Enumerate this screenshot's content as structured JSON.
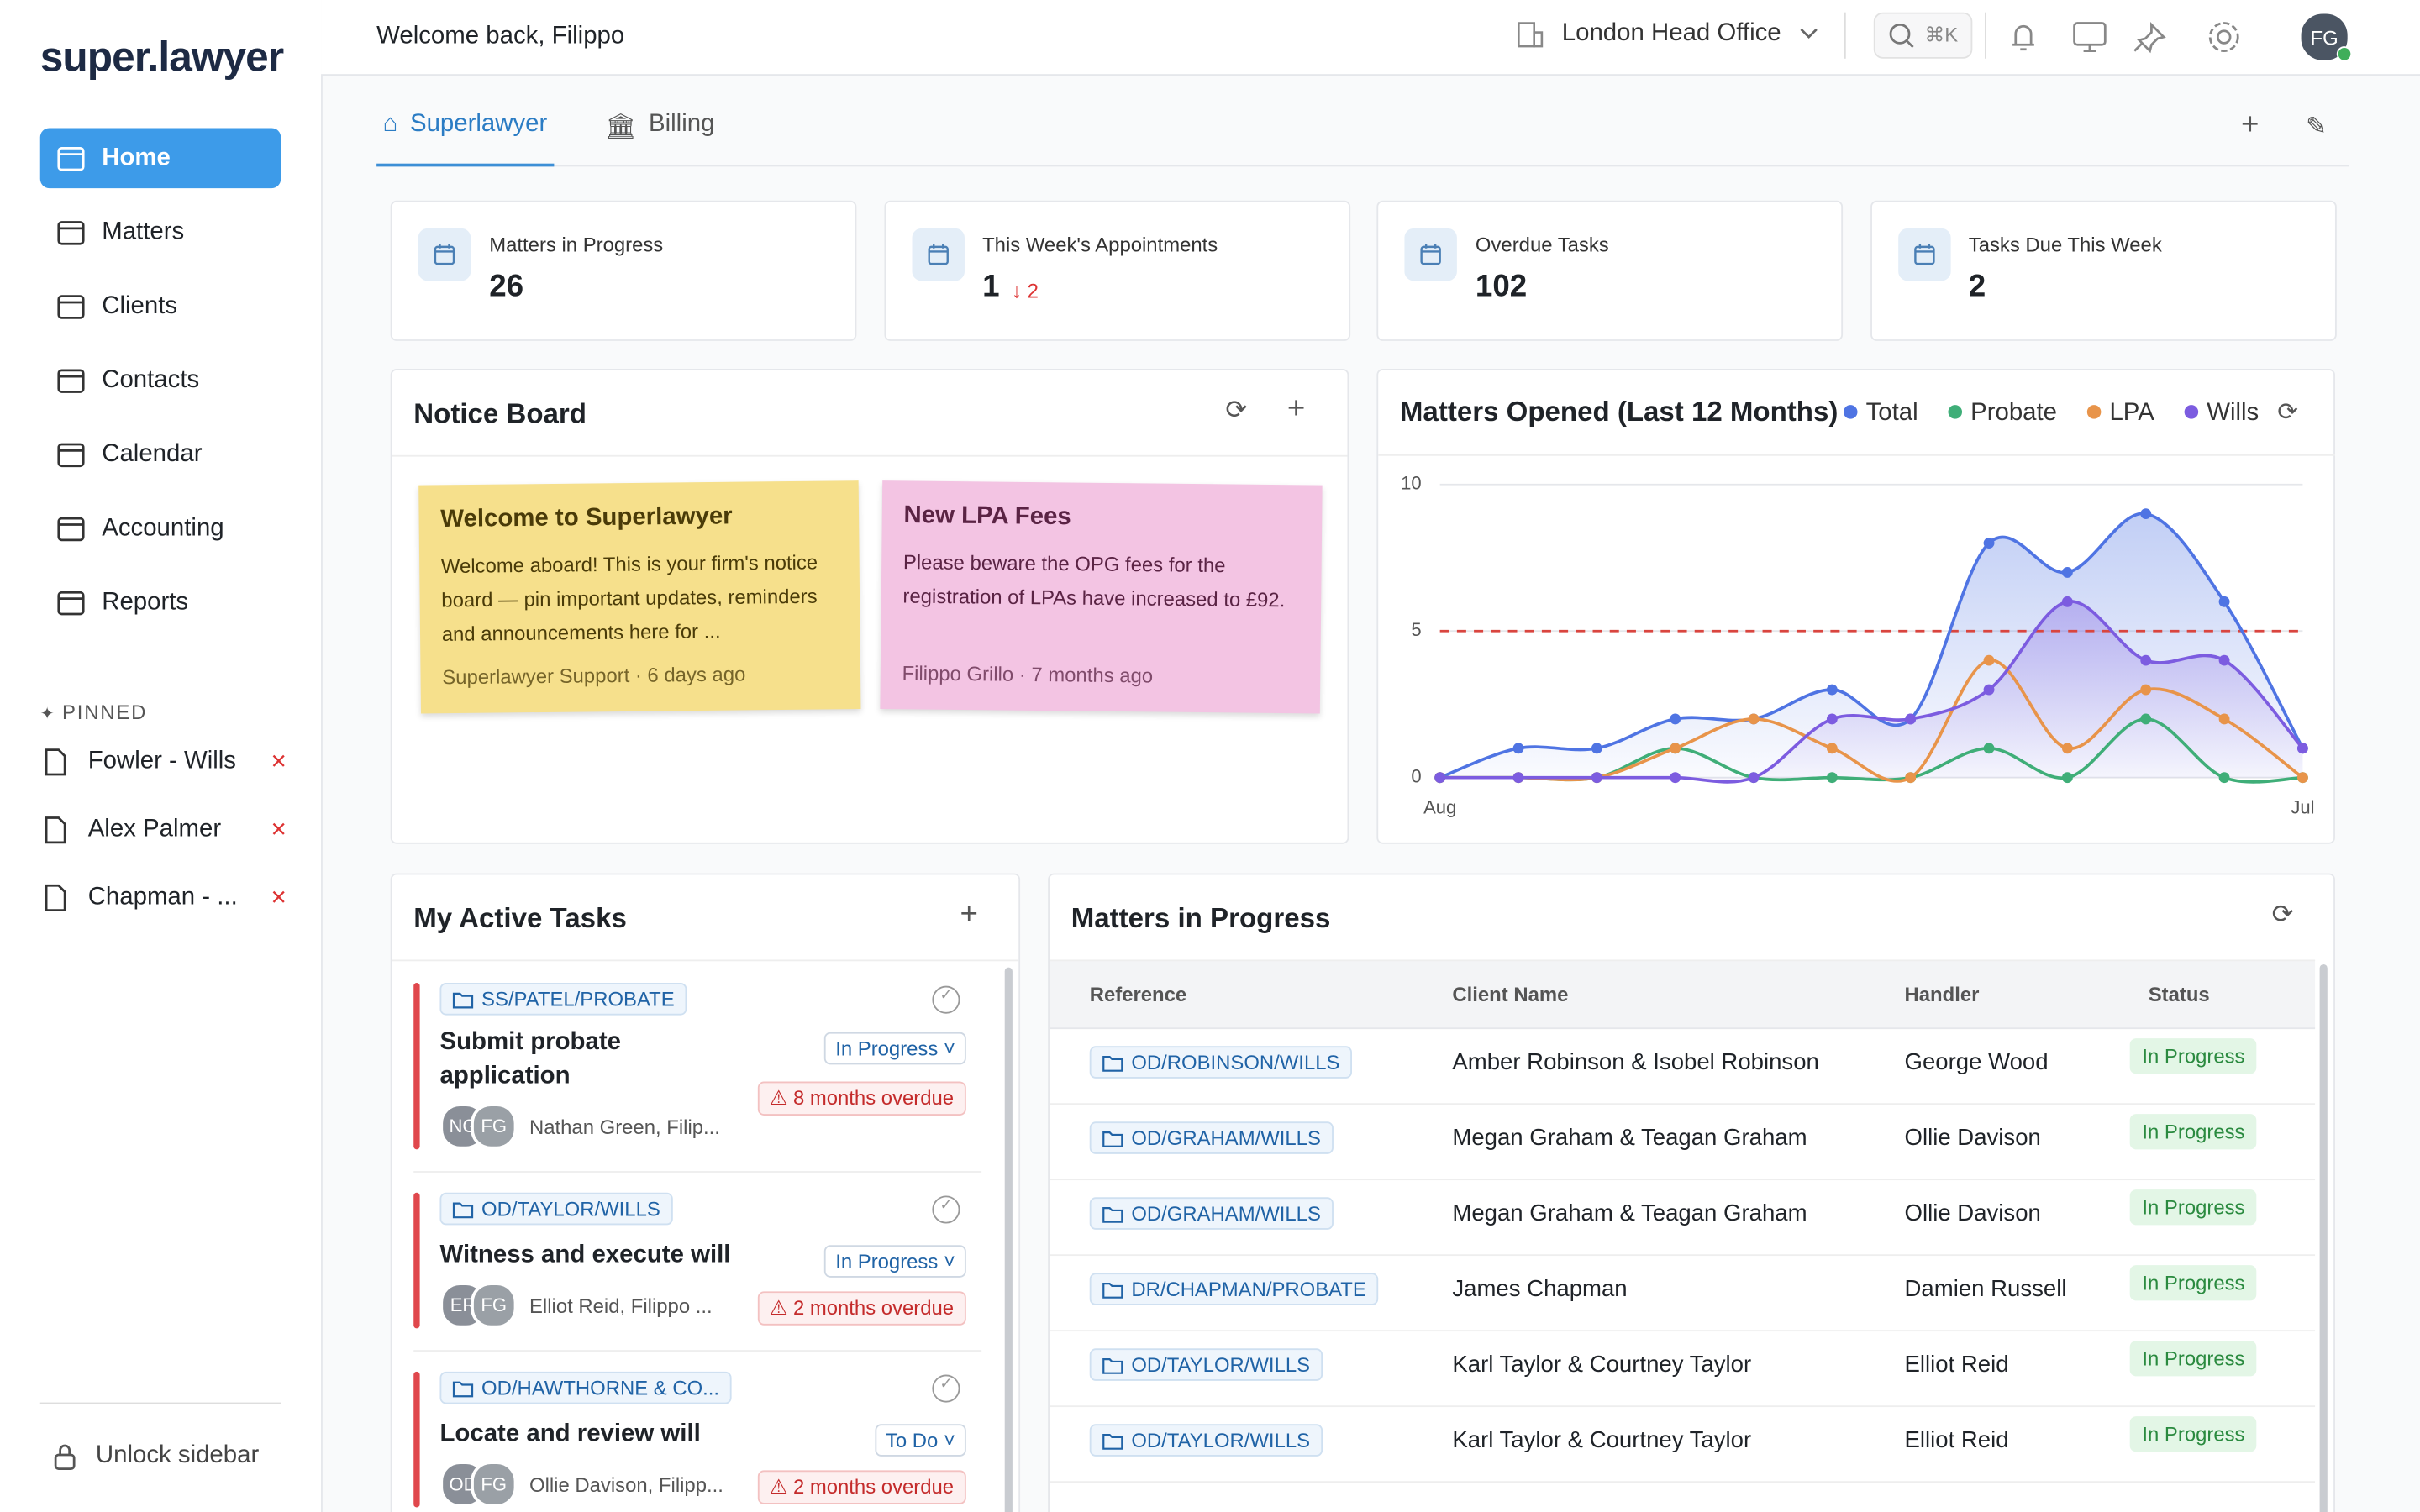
{
  "header": {
    "greeting": "Welcome back, Filippo",
    "office": "London Head Office",
    "search_shortcut": "⌘K",
    "avatar": "FG"
  },
  "sidebar": {
    "logo": "super.lawyer",
    "nav": [
      "Home",
      "Matters",
      "Clients",
      "Contacts",
      "Calendar",
      "Accounting",
      "Reports"
    ],
    "pinned_label": "PINNED",
    "pinned": [
      "Fowler - Wills",
      "Alex Palmer",
      "Chapman - ..."
    ],
    "unlock": "Unlock sidebar"
  },
  "tabs": [
    "Superlawyer",
    "Billing"
  ],
  "stats": [
    {
      "label": "Matters in Progress",
      "value": "26"
    },
    {
      "label": "This Week's Appointments",
      "value": "1",
      "change": "2"
    },
    {
      "label": "Overdue Tasks",
      "value": "102"
    },
    {
      "label": "Tasks Due This Week",
      "value": "2"
    }
  ],
  "notice_board": {
    "title": "Notice Board",
    "notes": [
      {
        "title": "Welcome to Superlawyer",
        "body": "Welcome aboard! This is your firm's notice board — pin important updates, reminders and announcements here for ...",
        "footer": "Superlawyer Support · 6 days ago"
      },
      {
        "title": "New LPA Fees",
        "body": "Please beware the OPG fees for the registration of LPAs have increased to £92.",
        "footer": "Filippo Grillo · 7 months ago"
      }
    ]
  },
  "chart_data": {
    "type": "line",
    "title": "Matters Opened (Last 12 Months)",
    "categories": [
      "Aug",
      null,
      null,
      null,
      null,
      null,
      null,
      null,
      null,
      null,
      null,
      "Jul"
    ],
    "series": [
      {
        "name": "Total",
        "color": "#4f74e3",
        "values": [
          0,
          1,
          1,
          2,
          2,
          3,
          2,
          8,
          7,
          9,
          6,
          1
        ]
      },
      {
        "name": "Probate",
        "color": "#3fae78",
        "values": [
          0,
          0,
          0,
          1,
          0,
          0,
          0,
          1,
          0,
          2,
          0,
          0
        ]
      },
      {
        "name": "LPA",
        "color": "#e8944a",
        "values": [
          0,
          0,
          0,
          1,
          2,
          1,
          0,
          4,
          1,
          3,
          2,
          0
        ]
      },
      {
        "name": "Wills",
        "color": "#7c5ce0",
        "values": [
          0,
          0,
          0,
          0,
          0,
          2,
          2,
          3,
          6,
          4,
          4,
          1
        ]
      }
    ],
    "ylim": [
      0,
      10
    ],
    "yticks": [
      0,
      5,
      10
    ],
    "grid": true,
    "reference_line": 5
  },
  "tasks": {
    "title": "My Active Tasks",
    "items": [
      {
        "matter": "SS/PATEL/PROBATE",
        "title": "Submit probate application",
        "status": "In Progress",
        "overdue": "8 months overdue",
        "initials": [
          "NG",
          "FG"
        ],
        "assignees": "Nathan Green, Filip..."
      },
      {
        "matter": "OD/TAYLOR/WILLS",
        "title": "Witness and execute will",
        "status": "In Progress",
        "overdue": "2 months overdue",
        "initials": [
          "ER",
          "FG"
        ],
        "assignees": "Elliot Reid, Filippo ..."
      },
      {
        "matter": "OD/HAWTHORNE & CO...",
        "title": "Locate and review will",
        "status": "To Do",
        "overdue": "2 months overdue",
        "initials": [
          "OD",
          "FG"
        ],
        "assignees": "Ollie Davison, Filipp..."
      }
    ]
  },
  "matters": {
    "title": "Matters in Progress",
    "columns": [
      "Reference",
      "Client Name",
      "Handler",
      "Status"
    ],
    "rows": [
      [
        "OD/ROBINSON/WILLS",
        "Amber Robinson & Isobel Robinson",
        "George Wood",
        "In Progress"
      ],
      [
        "OD/GRAHAM/WILLS",
        "Megan Graham & Teagan Graham",
        "Ollie Davison",
        "In Progress"
      ],
      [
        "OD/GRAHAM/WILLS",
        "Megan Graham & Teagan Graham",
        "Ollie Davison",
        "In Progress"
      ],
      [
        "DR/CHAPMAN/PROBATE",
        "James Chapman",
        "Damien Russell",
        "In Progress"
      ],
      [
        "OD/TAYLOR/WILLS",
        "Karl Taylor & Courtney Taylor",
        "Elliot Reid",
        "In Progress"
      ],
      [
        "OD/TAYLOR/WILLS",
        "Karl Taylor & Courtney Taylor",
        "Elliot Reid",
        "In Progress"
      ]
    ]
  }
}
